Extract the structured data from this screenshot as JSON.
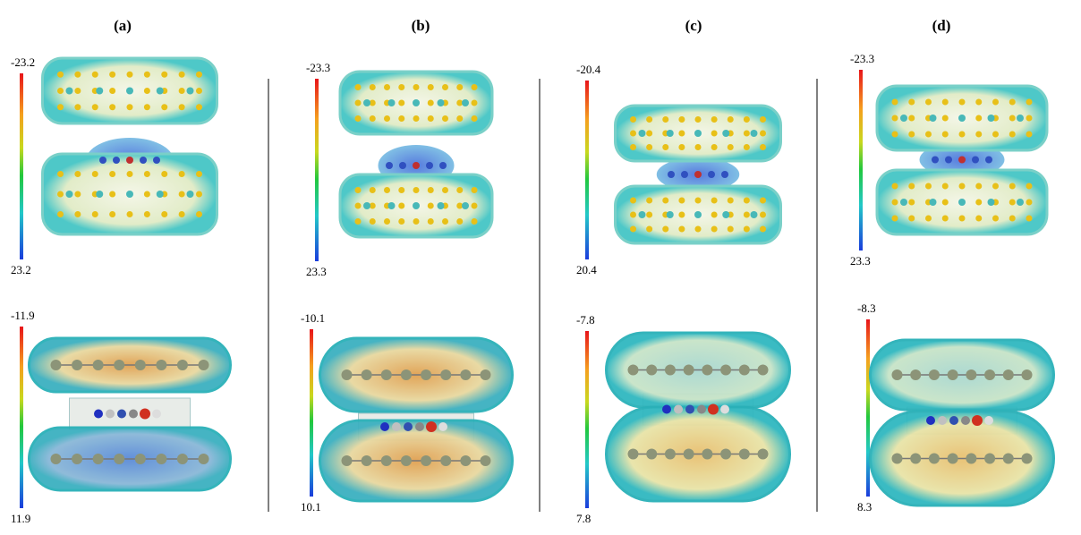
{
  "panels": [
    {
      "label": "(a)",
      "top": {
        "max": "-23.2",
        "min": "23.2"
      },
      "bottom": {
        "max": "-11.9",
        "min": "11.9"
      }
    },
    {
      "label": "(b)",
      "top": {
        "max": "-23.3",
        "min": "23.3"
      },
      "bottom": {
        "max": "-10.1",
        "min": "10.1"
      }
    },
    {
      "label": "(c)",
      "top": {
        "max": "-20.4",
        "min": "20.4"
      },
      "bottom": {
        "max": "-7.8",
        "min": "7.8"
      }
    },
    {
      "label": "(d)",
      "top": {
        "max": "-23.3",
        "min": "23.3"
      },
      "bottom": {
        "max": "-8.3",
        "min": "8.3"
      }
    }
  ]
}
